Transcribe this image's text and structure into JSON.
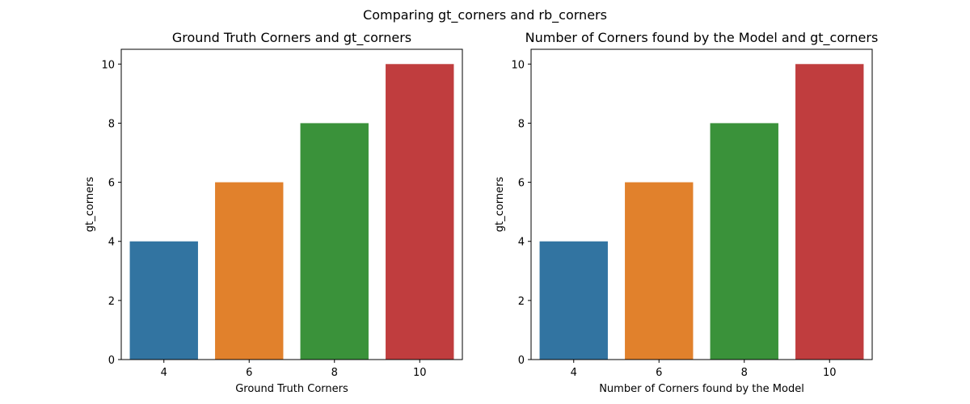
{
  "figure": {
    "suptitle": "Comparing gt_corners and rb_corners"
  },
  "chart_data": [
    {
      "type": "bar",
      "title": "Ground Truth Corners and gt_corners",
      "xlabel": "Ground Truth Corners",
      "ylabel": "gt_corners",
      "categories": [
        "4",
        "6",
        "8",
        "10"
      ],
      "values": [
        4,
        6,
        8,
        10
      ],
      "colors": [
        "#3274a1",
        "#e1812c",
        "#3a923a",
        "#c03d3e"
      ],
      "ylim": [
        0,
        10.5
      ],
      "yticks": [
        0,
        2,
        4,
        6,
        8,
        10
      ],
      "grid": false,
      "legend": "none"
    },
    {
      "type": "bar",
      "title": "Number of Corners found by the Model and gt_corners",
      "xlabel": "Number of Corners found by the Model",
      "ylabel": "gt_corners",
      "categories": [
        "4",
        "6",
        "8",
        "10"
      ],
      "values": [
        4,
        6,
        8,
        10
      ],
      "colors": [
        "#3274a1",
        "#e1812c",
        "#3a923a",
        "#c03d3e"
      ],
      "ylim": [
        0,
        10.5
      ],
      "yticks": [
        0,
        2,
        4,
        6,
        8,
        10
      ],
      "grid": false,
      "legend": "none"
    }
  ]
}
